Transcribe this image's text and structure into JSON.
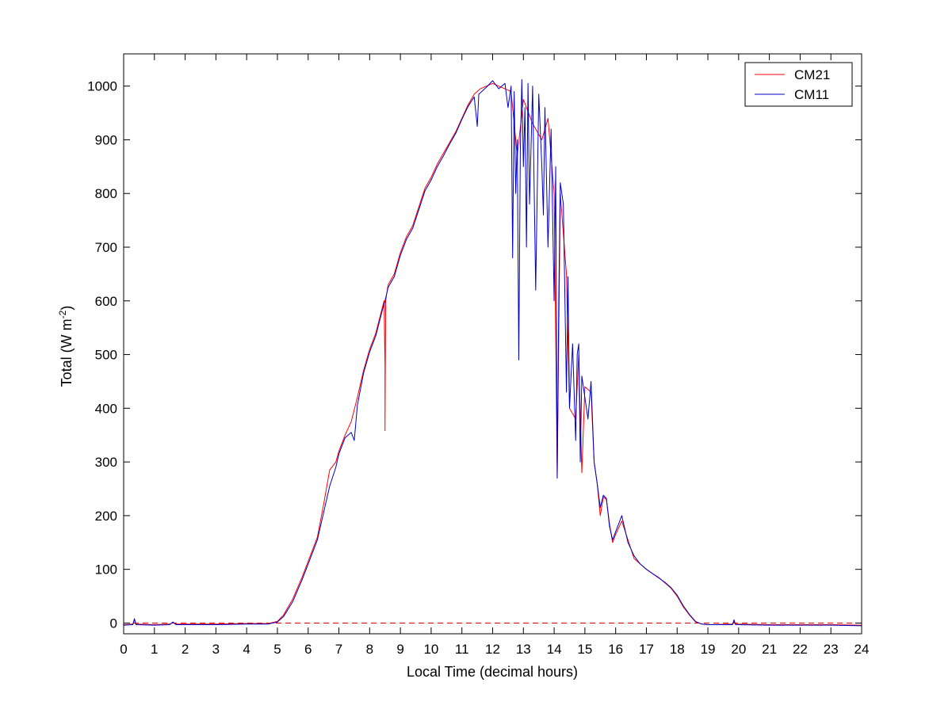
{
  "chart_data": {
    "type": "line",
    "xlabel": "Local Time (decimal hours)",
    "ylabel_main": "Total (W m",
    "ylabel_exp": "-2",
    "ylabel_close": ")",
    "xlim": [
      0,
      24
    ],
    "ylim": [
      -20,
      1060
    ],
    "xticks": [
      0,
      1,
      2,
      3,
      4,
      5,
      6,
      7,
      8,
      9,
      10,
      11,
      12,
      13,
      14,
      15,
      16,
      17,
      18,
      19,
      20,
      21,
      22,
      23,
      24
    ],
    "yticks": [
      0,
      100,
      200,
      300,
      400,
      500,
      600,
      700,
      800,
      900,
      1000
    ],
    "grid": false,
    "legend_position": "top-right",
    "baseline": {
      "y": 0,
      "style": "dashed",
      "color": "#cc0000"
    },
    "series": [
      {
        "name": "CM21",
        "color": "#ff0000",
        "points": [
          [
            0,
            -3
          ],
          [
            0.3,
            -2
          ],
          [
            0.35,
            7
          ],
          [
            0.4,
            -2
          ],
          [
            1,
            -3
          ],
          [
            1.5,
            -2
          ],
          [
            1.6,
            1
          ],
          [
            1.7,
            -2
          ],
          [
            2,
            -2
          ],
          [
            3,
            -2
          ],
          [
            4,
            -1
          ],
          [
            4.7,
            -1
          ],
          [
            5,
            3
          ],
          [
            5.2,
            15
          ],
          [
            5.5,
            45
          ],
          [
            5.8,
            85
          ],
          [
            6,
            115
          ],
          [
            6.3,
            160
          ],
          [
            6.5,
            220
          ],
          [
            6.7,
            285
          ],
          [
            6.9,
            300
          ],
          [
            7,
            320
          ],
          [
            7.2,
            350
          ],
          [
            7.4,
            375
          ],
          [
            7.6,
            420
          ],
          [
            7.8,
            470
          ],
          [
            8,
            510
          ],
          [
            8.2,
            540
          ],
          [
            8.4,
            585
          ],
          [
            8.47,
            600
          ],
          [
            8.5,
            475
          ],
          [
            8.5,
            358
          ],
          [
            8.52,
            600
          ],
          [
            8.6,
            630
          ],
          [
            8.8,
            650
          ],
          [
            9,
            690
          ],
          [
            9.2,
            720
          ],
          [
            9.4,
            740
          ],
          [
            9.6,
            775
          ],
          [
            9.8,
            810
          ],
          [
            10,
            830
          ],
          [
            10.2,
            855
          ],
          [
            10.4,
            875
          ],
          [
            10.6,
            895
          ],
          [
            10.8,
            915
          ],
          [
            11,
            940
          ],
          [
            11.2,
            965
          ],
          [
            11.4,
            985
          ],
          [
            11.6,
            995
          ],
          [
            11.8,
            1000
          ],
          [
            12,
            1005
          ],
          [
            12.2,
            1000
          ],
          [
            12.4,
            995
          ],
          [
            12.6,
            990
          ],
          [
            12.8,
            870
          ],
          [
            13,
            975
          ],
          [
            13.3,
            930
          ],
          [
            13.6,
            900
          ],
          [
            13.8,
            940
          ],
          [
            14,
            800
          ],
          [
            14.1,
            270
          ],
          [
            14.2,
            800
          ],
          [
            14.4,
            650
          ],
          [
            14.5,
            400
          ],
          [
            14.7,
            380
          ],
          [
            14.8,
            500
          ],
          [
            14.9,
            280
          ],
          [
            15,
            440
          ],
          [
            15.2,
            430
          ],
          [
            15.3,
            300
          ],
          [
            15.4,
            260
          ],
          [
            15.5,
            200
          ],
          [
            15.6,
            235
          ],
          [
            15.7,
            230
          ],
          [
            15.8,
            185
          ],
          [
            15.9,
            150
          ],
          [
            16,
            165
          ],
          [
            16.2,
            190
          ],
          [
            16.4,
            155
          ],
          [
            16.6,
            120
          ],
          [
            16.8,
            110
          ],
          [
            17,
            100
          ],
          [
            17.2,
            92
          ],
          [
            17.4,
            85
          ],
          [
            17.6,
            75
          ],
          [
            17.8,
            65
          ],
          [
            18,
            50
          ],
          [
            18.2,
            30
          ],
          [
            18.4,
            15
          ],
          [
            18.6,
            2
          ],
          [
            18.8,
            -2
          ],
          [
            19,
            -3
          ],
          [
            19.8,
            -2
          ],
          [
            19.85,
            3
          ],
          [
            19.9,
            -2
          ],
          [
            21,
            -3
          ],
          [
            22,
            -3
          ],
          [
            23,
            -3
          ],
          [
            24,
            -4
          ]
        ]
      },
      {
        "name": "CM11",
        "color": "#0000cc",
        "points": [
          [
            0,
            -4
          ],
          [
            0.3,
            -3
          ],
          [
            0.35,
            8
          ],
          [
            0.4,
            -3
          ],
          [
            1,
            -4
          ],
          [
            1.5,
            -3
          ],
          [
            1.6,
            2
          ],
          [
            1.7,
            -3
          ],
          [
            2,
            -3
          ],
          [
            3,
            -3
          ],
          [
            4,
            -2
          ],
          [
            4.7,
            -2
          ],
          [
            5,
            2
          ],
          [
            5.2,
            12
          ],
          [
            5.5,
            40
          ],
          [
            5.8,
            80
          ],
          [
            6,
            110
          ],
          [
            6.3,
            155
          ],
          [
            6.5,
            205
          ],
          [
            6.7,
            255
          ],
          [
            6.9,
            290
          ],
          [
            7,
            315
          ],
          [
            7.2,
            345
          ],
          [
            7.4,
            355
          ],
          [
            7.5,
            340
          ],
          [
            7.6,
            405
          ],
          [
            7.8,
            465
          ],
          [
            8,
            505
          ],
          [
            8.2,
            535
          ],
          [
            8.4,
            580
          ],
          [
            8.5,
            600
          ],
          [
            8.6,
            625
          ],
          [
            8.8,
            645
          ],
          [
            9,
            685
          ],
          [
            9.2,
            715
          ],
          [
            9.4,
            735
          ],
          [
            9.6,
            770
          ],
          [
            9.8,
            805
          ],
          [
            10,
            825
          ],
          [
            10.2,
            850
          ],
          [
            10.4,
            870
          ],
          [
            10.6,
            892
          ],
          [
            10.8,
            912
          ],
          [
            11,
            938
          ],
          [
            11.2,
            962
          ],
          [
            11.4,
            980
          ],
          [
            11.5,
            925
          ],
          [
            11.55,
            985
          ],
          [
            11.8,
            998
          ],
          [
            12,
            1010
          ],
          [
            12.2,
            995
          ],
          [
            12.4,
            1005
          ],
          [
            12.5,
            960
          ],
          [
            12.6,
            1000
          ],
          [
            12.65,
            680
          ],
          [
            12.7,
            990
          ],
          [
            12.75,
            800
          ],
          [
            12.8,
            900
          ],
          [
            12.85,
            490
          ],
          [
            12.9,
            880
          ],
          [
            12.95,
            1012
          ],
          [
            13,
            850
          ],
          [
            13.05,
            960
          ],
          [
            13.1,
            700
          ],
          [
            13.15,
            1005
          ],
          [
            13.2,
            780
          ],
          [
            13.3,
            1000
          ],
          [
            13.4,
            620
          ],
          [
            13.5,
            985
          ],
          [
            13.6,
            850
          ],
          [
            13.65,
            760
          ],
          [
            13.7,
            960
          ],
          [
            13.8,
            700
          ],
          [
            13.9,
            920
          ],
          [
            14,
            600
          ],
          [
            14.05,
            850
          ],
          [
            14.1,
            270
          ],
          [
            14.15,
            600
          ],
          [
            14.2,
            820
          ],
          [
            14.3,
            780
          ],
          [
            14.4,
            430
          ],
          [
            14.45,
            645
          ],
          [
            14.5,
            400
          ],
          [
            14.6,
            520
          ],
          [
            14.7,
            340
          ],
          [
            14.75,
            500
          ],
          [
            14.8,
            520
          ],
          [
            14.85,
            300
          ],
          [
            14.9,
            460
          ],
          [
            15,
            420
          ],
          [
            15.1,
            380
          ],
          [
            15.2,
            450
          ],
          [
            15.3,
            300
          ],
          [
            15.4,
            260
          ],
          [
            15.5,
            215
          ],
          [
            15.6,
            238
          ],
          [
            15.7,
            232
          ],
          [
            15.8,
            180
          ],
          [
            15.9,
            155
          ],
          [
            16,
            170
          ],
          [
            16.2,
            200
          ],
          [
            16.4,
            150
          ],
          [
            16.6,
            125
          ],
          [
            16.8,
            110
          ],
          [
            17,
            100
          ],
          [
            17.2,
            92
          ],
          [
            17.4,
            84
          ],
          [
            17.6,
            76
          ],
          [
            17.8,
            66
          ],
          [
            18,
            52
          ],
          [
            18.2,
            32
          ],
          [
            18.4,
            16
          ],
          [
            18.6,
            3
          ],
          [
            18.8,
            -2
          ],
          [
            19,
            -3
          ],
          [
            19.8,
            -3
          ],
          [
            19.85,
            6
          ],
          [
            19.9,
            -3
          ],
          [
            21,
            -4
          ],
          [
            22,
            -4
          ],
          [
            23,
            -4
          ],
          [
            24,
            -5
          ]
        ]
      }
    ]
  }
}
